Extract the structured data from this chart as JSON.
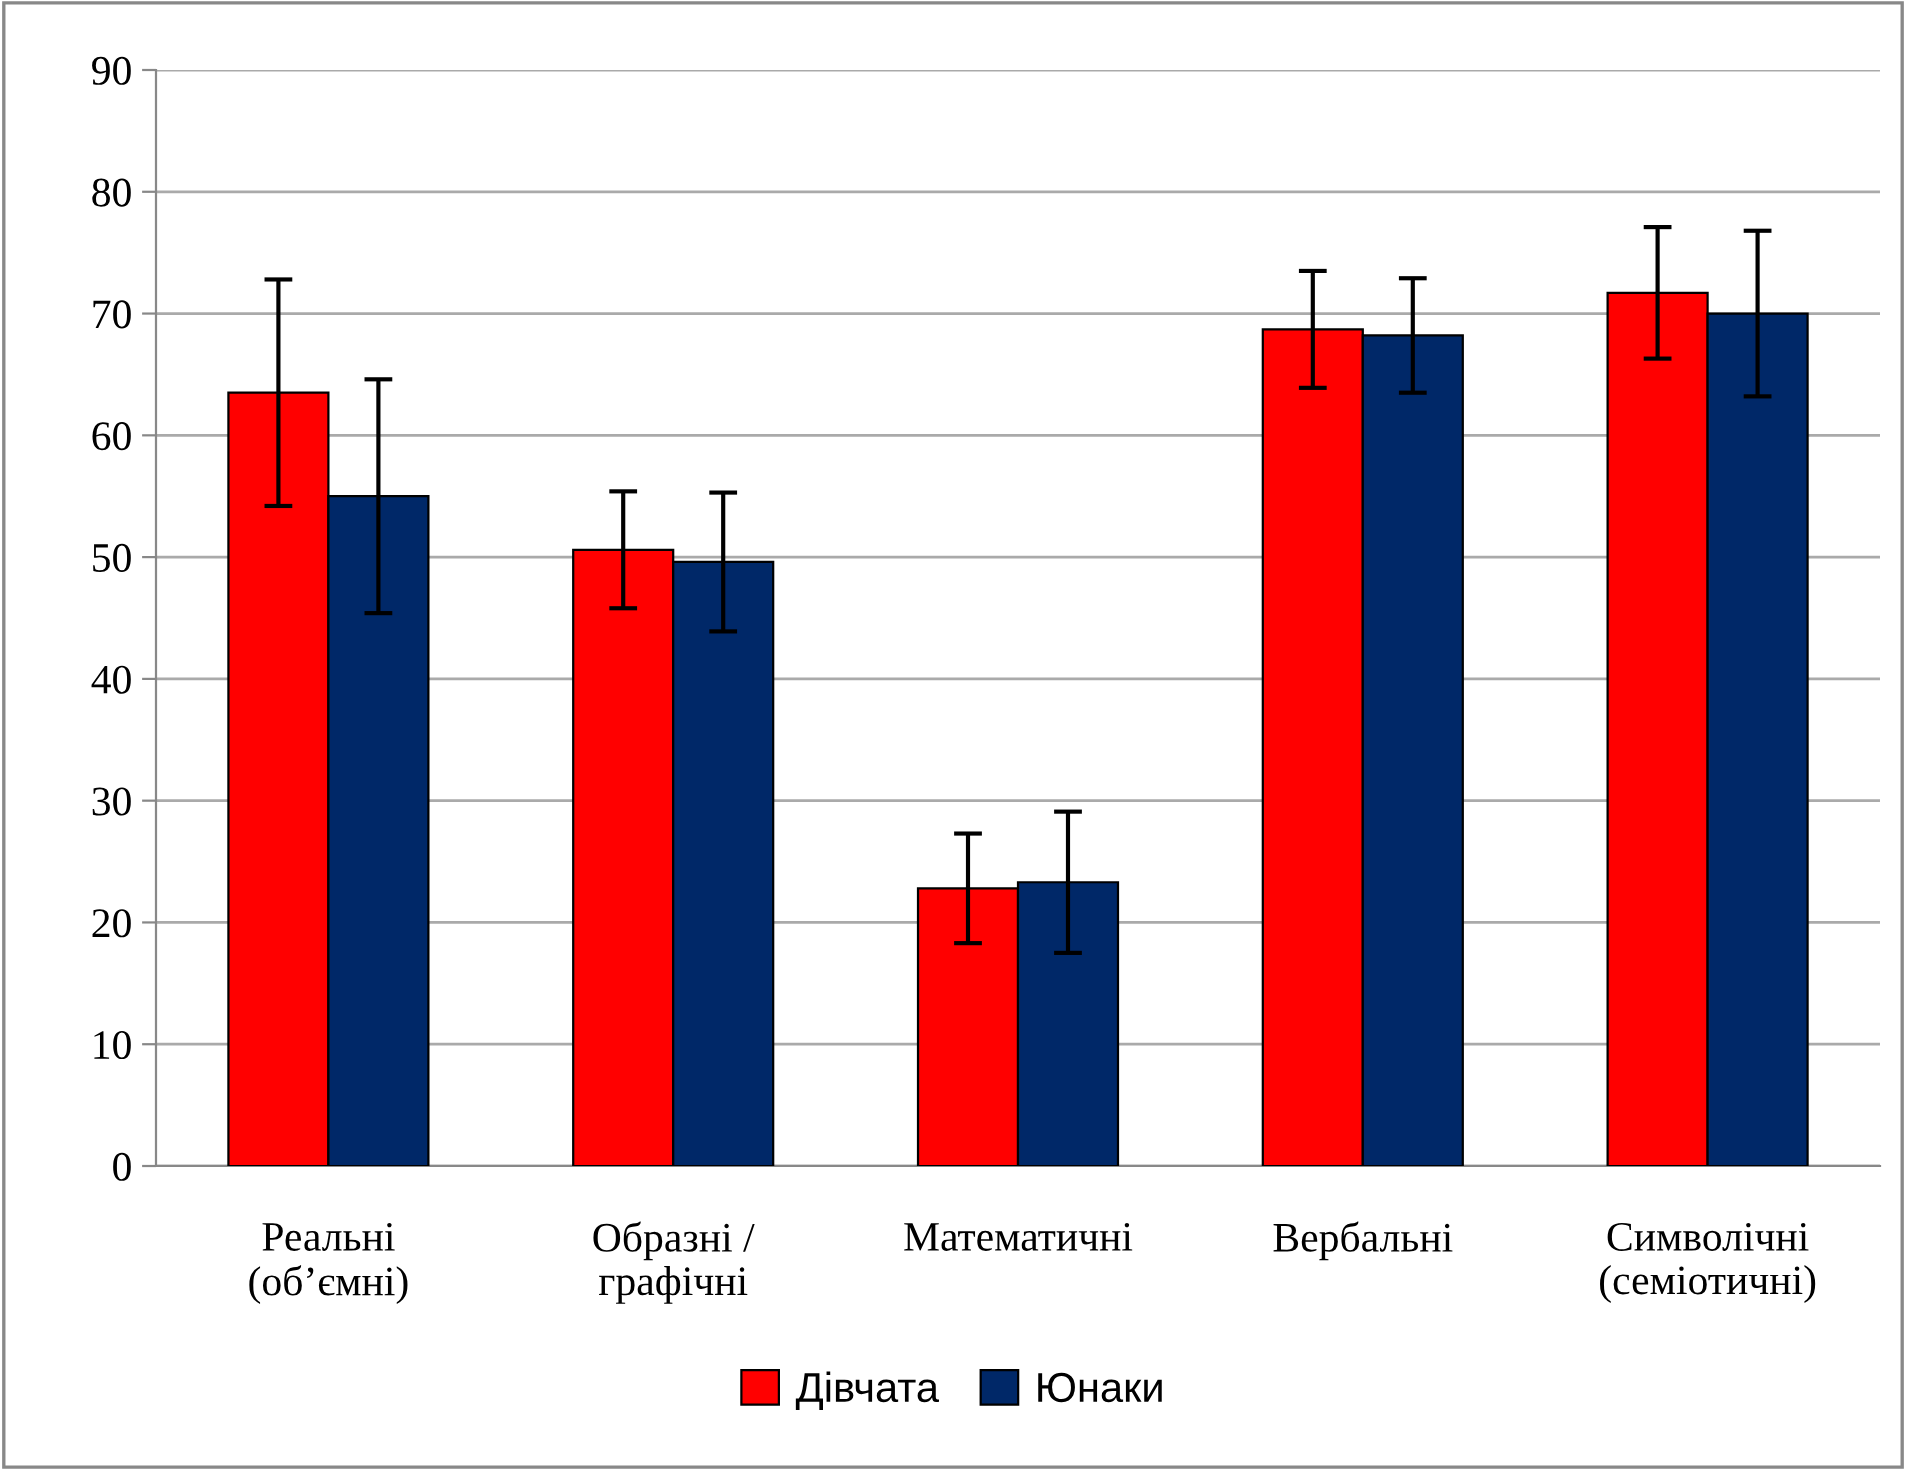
{
  "chart_data": {
    "type": "bar",
    "categories": [
      "Реальні\n(об’ємні)",
      "Образні /\nграфічні",
      "Математичні",
      "Вербальні",
      "Символічні\n(семіотичні)"
    ],
    "series": [
      {
        "name": "Дівчата",
        "color": "#ff0000",
        "values": [
          63.5,
          50.6,
          22.8,
          68.7,
          71.7
        ],
        "errors": [
          9.3,
          4.8,
          4.5,
          4.8,
          5.4
        ]
      },
      {
        "name": "Юнаки",
        "color": "#002868",
        "values": [
          55.0,
          49.6,
          23.3,
          68.2,
          70.0
        ],
        "errors": [
          9.6,
          5.7,
          5.8,
          4.7,
          6.8
        ]
      }
    ],
    "ylim": [
      0,
      90
    ],
    "yticks": [
      0,
      10,
      20,
      30,
      40,
      50,
      60,
      70,
      80,
      90
    ],
    "grid": "y",
    "legend": "bottom"
  }
}
